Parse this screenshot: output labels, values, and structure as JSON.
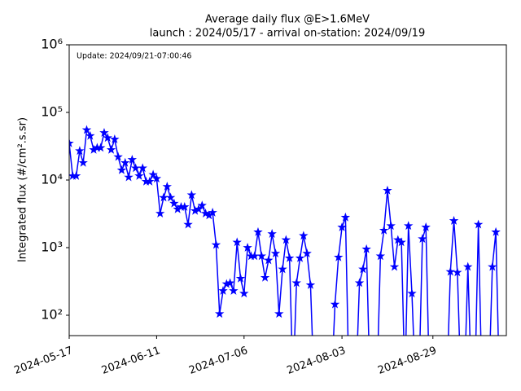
{
  "chart_data": {
    "type": "line",
    "title": "Average daily flux @E>1.6MeV",
    "subtitle": "launch : 2024/05/17 - arrival on-station: 2024/09/19",
    "annotation": "Update: 2024/09/21-07:00:46",
    "y_label": "Integrated flux (#/cm².s.sr)",
    "y_log": true,
    "x": [
      "2024-05-17",
      "2024-05-18",
      "2024-05-19",
      "2024-05-20",
      "2024-05-21",
      "2024-05-22",
      "2024-05-23",
      "2024-05-24",
      "2024-05-25",
      "2024-05-26",
      "2024-05-27",
      "2024-05-28",
      "2024-05-29",
      "2024-05-30",
      "2024-05-31",
      "2024-06-01",
      "2024-06-02",
      "2024-06-03",
      "2024-06-04",
      "2024-06-05",
      "2024-06-06",
      "2024-06-07",
      "2024-06-08",
      "2024-06-09",
      "2024-06-10",
      "2024-06-11",
      "2024-06-12",
      "2024-06-13",
      "2024-06-14",
      "2024-06-15",
      "2024-06-16",
      "2024-06-17",
      "2024-06-18",
      "2024-06-19",
      "2024-06-20",
      "2024-06-21",
      "2024-06-22",
      "2024-06-23",
      "2024-06-24",
      "2024-06-25",
      "2024-06-26",
      "2024-06-27",
      "2024-06-28",
      "2024-06-29",
      "2024-06-30",
      "2024-07-01",
      "2024-07-02",
      "2024-07-03",
      "2024-07-04",
      "2024-07-05",
      "2024-07-06",
      "2024-07-07",
      "2024-07-08",
      "2024-07-09",
      "2024-07-10",
      "2024-07-11",
      "2024-07-12",
      "2024-07-13",
      "2024-07-14",
      "2024-07-15",
      "2024-07-16",
      "2024-07-17",
      "2024-07-18",
      "2024-07-19",
      "2024-07-20",
      "2024-07-21",
      "2024-07-22",
      "2024-07-23",
      "2024-07-24",
      "2024-07-25",
      "2024-07-26",
      "2024-07-27",
      "2024-07-28",
      "2024-07-29",
      "2024-07-30",
      "2024-07-31",
      "2024-08-01",
      "2024-08-02",
      "2024-08-03",
      "2024-08-04",
      "2024-08-05",
      "2024-08-06",
      "2024-08-07",
      "2024-08-08",
      "2024-08-09",
      "2024-08-10",
      "2024-08-11",
      "2024-08-12",
      "2024-08-13",
      "2024-08-14",
      "2024-08-15",
      "2024-08-16",
      "2024-08-17",
      "2024-08-18",
      "2024-08-19",
      "2024-08-20",
      "2024-08-21",
      "2024-08-22",
      "2024-08-23",
      "2024-08-24",
      "2024-08-25",
      "2024-08-26",
      "2024-08-27",
      "2024-08-28",
      "2024-08-29",
      "2024-08-30",
      "2024-08-31",
      "2024-09-01",
      "2024-09-02",
      "2024-09-03",
      "2024-09-04",
      "2024-09-05",
      "2024-09-06",
      "2024-09-07",
      "2024-09-08",
      "2024-09-09",
      "2024-09-10",
      "2024-09-11",
      "2024-09-12",
      "2024-09-13",
      "2024-09-14",
      "2024-09-15",
      "2024-09-16",
      "2024-09-17"
    ],
    "series": [
      {
        "color": "#0000ff",
        "values": [
          35000,
          11500,
          11500,
          27000,
          18000,
          55000,
          45000,
          28000,
          30000,
          30000,
          50000,
          42000,
          28000,
          40000,
          22000,
          14000,
          18000,
          11000,
          20000,
          15000,
          11500,
          15000,
          9500,
          9500,
          12000,
          10500,
          3200,
          5500,
          8000,
          5500,
          4500,
          3700,
          4000,
          4000,
          2200,
          6000,
          3500,
          3700,
          4200,
          3200,
          3000,
          3300,
          1100,
          105,
          230,
          290,
          300,
          230,
          1200,
          350,
          210,
          1000,
          750,
          750,
          1700,
          750,
          360,
          650,
          1600,
          820,
          105,
          480,
          1300,
          700,
          0,
          300,
          700,
          1500,
          820,
          280,
          0,
          null,
          null,
          null,
          null,
          0,
          145,
          720,
          2000,
          2800,
          0,
          null,
          0,
          300,
          480,
          950,
          0,
          null,
          0,
          750,
          1800,
          7000,
          2100,
          520,
          1300,
          1200,
          0,
          2100,
          210,
          0,
          0,
          1350,
          2000,
          0,
          null,
          null,
          null,
          null,
          0,
          440,
          2500,
          430,
          0,
          0,
          520,
          0,
          0,
          2200,
          0,
          null,
          0,
          520,
          1700,
          0
        ]
      }
    ],
    "xlim": [
      "2024-05-17",
      "2024-09-19"
    ],
    "xticks": [
      "2024-05-17",
      "2024-06-11",
      "2024-07-06",
      "2024-08-03",
      "2024-08-29"
    ],
    "ylim": [
      50,
      1000000
    ],
    "yticks": [
      {
        "value": 100,
        "label": "10²"
      },
      {
        "value": 1000,
        "label": "10³"
      },
      {
        "value": 10000,
        "label": "10⁴"
      },
      {
        "value": 100000,
        "label": "10⁵"
      },
      {
        "value": 1000000,
        "label": "10⁶"
      }
    ]
  }
}
